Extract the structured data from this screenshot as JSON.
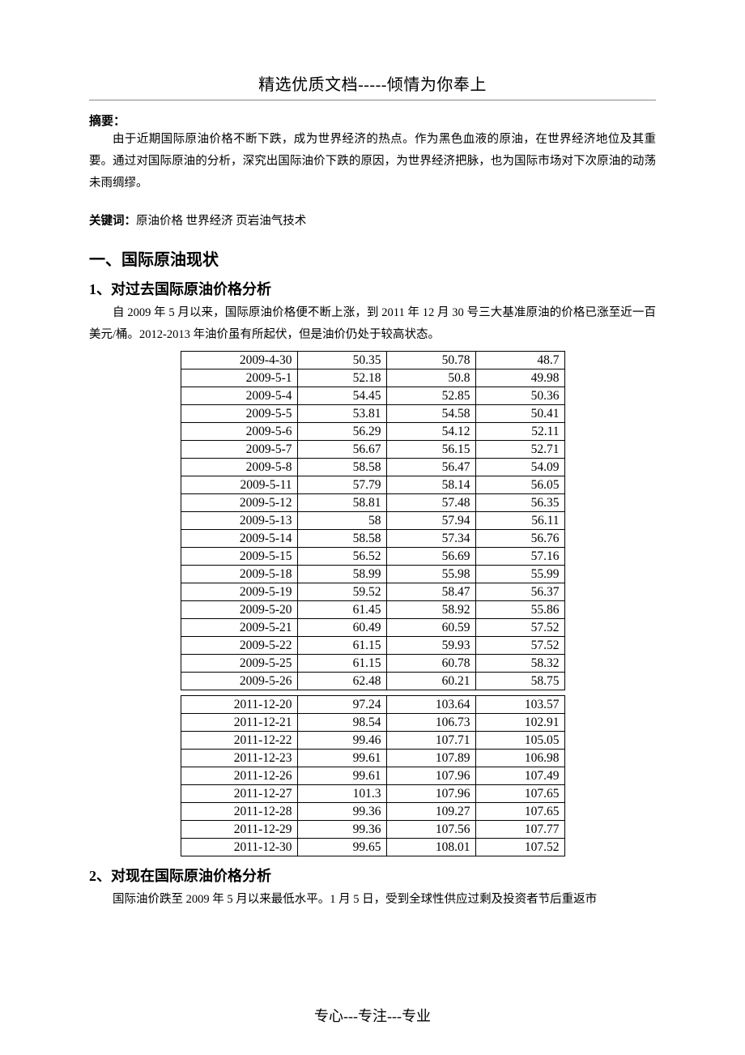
{
  "header": {
    "title": "精选优质文档-----倾情为你奉上"
  },
  "abstract": {
    "label": "摘要：",
    "text": "由于近期国际原油价格不断下跌，成为世界经济的热点。作为黑色血液的原油，在世界经济地位及其重要。通过对国际原油的分析，深究出国际油价下跌的原因，为世界经济把脉，也为国际市场对下次原油的动荡未雨绸缪。"
  },
  "keywords": {
    "label": "关键词：",
    "text": "原油价格 世界经济 页岩油气技术"
  },
  "section1": {
    "heading": "一、国际原油现状",
    "sub1": {
      "heading": "1、对过去国际原油价格分析",
      "text": "自 2009 年 5 月以来，国际原油价格便不断上涨，到 2011 年 12 月 30 号三大基准原油的价格已涨至近一百美元/桶。2012-2013 年油价虽有所起伏，但是油价仍处于较高状态。"
    },
    "sub2": {
      "heading": "2、对现在国际原油价格分析",
      "text": "国际油价跌至 2009 年 5 月以来最低水平。1 月 5 日，受到全球性供应过剩及投资者节后重返市"
    }
  },
  "table_2009": {
    "col_widths": [
      "144px",
      "110px",
      "110px",
      "110px"
    ],
    "rows": [
      [
        "2009-4-30",
        "50.35",
        "50.78",
        "48.7"
      ],
      [
        "2009-5-1",
        "52.18",
        "50.8",
        "49.98"
      ],
      [
        "2009-5-4",
        "54.45",
        "52.85",
        "50.36"
      ],
      [
        "2009-5-5",
        "53.81",
        "54.58",
        "50.41"
      ],
      [
        "2009-5-6",
        "56.29",
        "54.12",
        "52.11"
      ],
      [
        "2009-5-7",
        "56.67",
        "56.15",
        "52.71"
      ],
      [
        "2009-5-8",
        "58.58",
        "56.47",
        "54.09"
      ],
      [
        "2009-5-11",
        "57.79",
        "58.14",
        "56.05"
      ],
      [
        "2009-5-12",
        "58.81",
        "57.48",
        "56.35"
      ],
      [
        "2009-5-13",
        "58",
        "57.94",
        "56.11"
      ],
      [
        "2009-5-14",
        "58.58",
        "57.34",
        "56.76"
      ],
      [
        "2009-5-15",
        "56.52",
        "56.69",
        "57.16"
      ],
      [
        "2009-5-18",
        "58.99",
        "55.98",
        "55.99"
      ],
      [
        "2009-5-19",
        "59.52",
        "58.47",
        "56.37"
      ],
      [
        "2009-5-20",
        "61.45",
        "58.92",
        "55.86"
      ],
      [
        "2009-5-21",
        "60.49",
        "60.59",
        "57.52"
      ],
      [
        "2009-5-22",
        "61.15",
        "59.93",
        "57.52"
      ],
      [
        "2009-5-25",
        "61.15",
        "60.78",
        "58.32"
      ],
      [
        "2009-5-26",
        "62.48",
        "60.21",
        "58.75"
      ]
    ]
  },
  "table_2011": {
    "col_widths": [
      "144px",
      "110px",
      "110px",
      "110px"
    ],
    "rows": [
      [
        "2011-12-20",
        "97.24",
        "103.64",
        "103.57"
      ],
      [
        "2011-12-21",
        "98.54",
        "106.73",
        "102.91"
      ],
      [
        "2011-12-22",
        "99.46",
        "107.71",
        "105.05"
      ],
      [
        "2011-12-23",
        "99.61",
        "107.89",
        "106.98"
      ],
      [
        "2011-12-26",
        "99.61",
        "107.96",
        "107.49"
      ],
      [
        "2011-12-27",
        "101.3",
        "107.96",
        "107.65"
      ],
      [
        "2011-12-28",
        "99.36",
        "109.27",
        "107.65"
      ],
      [
        "2011-12-29",
        "99.36",
        "107.56",
        "107.77"
      ],
      [
        "2011-12-30",
        "99.65",
        "108.01",
        "107.52"
      ]
    ]
  },
  "footer": {
    "text": "专心---专注---专业"
  }
}
